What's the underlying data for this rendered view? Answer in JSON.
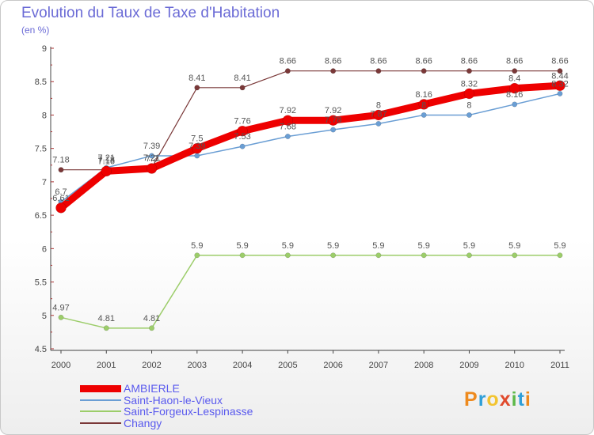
{
  "header": {
    "title": "Evolution du Taux de Taxe d'Habitation",
    "subtitle": "(en %)"
  },
  "logo": {
    "text": "Proxiti",
    "colors": [
      "#ee8a1e",
      "#2f9fd8",
      "#f2c430",
      "#e04a2c",
      "#5cb848",
      "#2f9fd8",
      "#ee8a1e"
    ]
  },
  "chart_data": {
    "type": "line",
    "title": "Evolution du Taux de Taxe d'Habitation",
    "subtitle": "(en %)",
    "xlabel": "",
    "ylabel": "",
    "ylim": [
      4.5,
      9
    ],
    "yticks": [
      "4.5",
      "5",
      "5.5",
      "6",
      "6.5",
      "7",
      "7.5",
      "8",
      "8.5",
      "9"
    ],
    "categories": [
      "2000",
      "2001",
      "2002",
      "2003",
      "2004",
      "2005",
      "2006",
      "2007",
      "2008",
      "2009",
      "2010",
      "2011"
    ],
    "grid": false,
    "legend_position": "bottom-left",
    "series": [
      {
        "name": "AMBIERLE",
        "color": "#ee0000",
        "values": [
          6.61,
          7.16,
          7.2,
          7.5,
          7.76,
          7.92,
          7.92,
          8,
          8.16,
          8.32,
          8.4,
          8.44
        ],
        "labels": [
          "6.61",
          "7.16",
          "7.2",
          "7.5",
          "7.76",
          "7.92",
          "7.92",
          "8",
          "8.16",
          "8.32",
          "8.4",
          "8.44"
        ]
      },
      {
        "name": "Saint-Haon-le-Vieux",
        "color": "#6a9ed4",
        "values": [
          6.7,
          7.21,
          7.39,
          7.39,
          7.53,
          7.68,
          7.78,
          7.87,
          8,
          8,
          8.16,
          8.32
        ],
        "labels": [
          "6.7",
          "7.21",
          "7.39",
          "7.39",
          "7.53",
          "7.68",
          "7.78",
          "7.87",
          "8",
          "8",
          "8.16",
          "8.32"
        ]
      },
      {
        "name": "Saint-Forgeux-Lespinasse",
        "color": "#9ccd6a",
        "values": [
          4.97,
          4.81,
          4.81,
          5.9,
          5.9,
          5.9,
          5.9,
          5.9,
          5.9,
          5.9,
          5.9,
          5.9
        ],
        "labels": [
          "4.97",
          "4.81",
          "4.81",
          "5.9",
          "5.9",
          "5.9",
          "5.9",
          "5.9",
          "5.9",
          "5.9",
          "5.9",
          "5.9"
        ]
      },
      {
        "name": "Changy",
        "color": "#7a3838",
        "values": [
          7.18,
          7.18,
          7.21,
          8.41,
          8.41,
          8.66,
          8.66,
          8.66,
          8.66,
          8.66,
          8.66,
          8.66
        ],
        "labels": [
          "7.18",
          "7.18",
          "7.21",
          "8.41",
          "8.41",
          "8.66",
          "8.66",
          "8.66",
          "8.66",
          "8.66",
          "8.66",
          "8.66"
        ]
      }
    ]
  }
}
